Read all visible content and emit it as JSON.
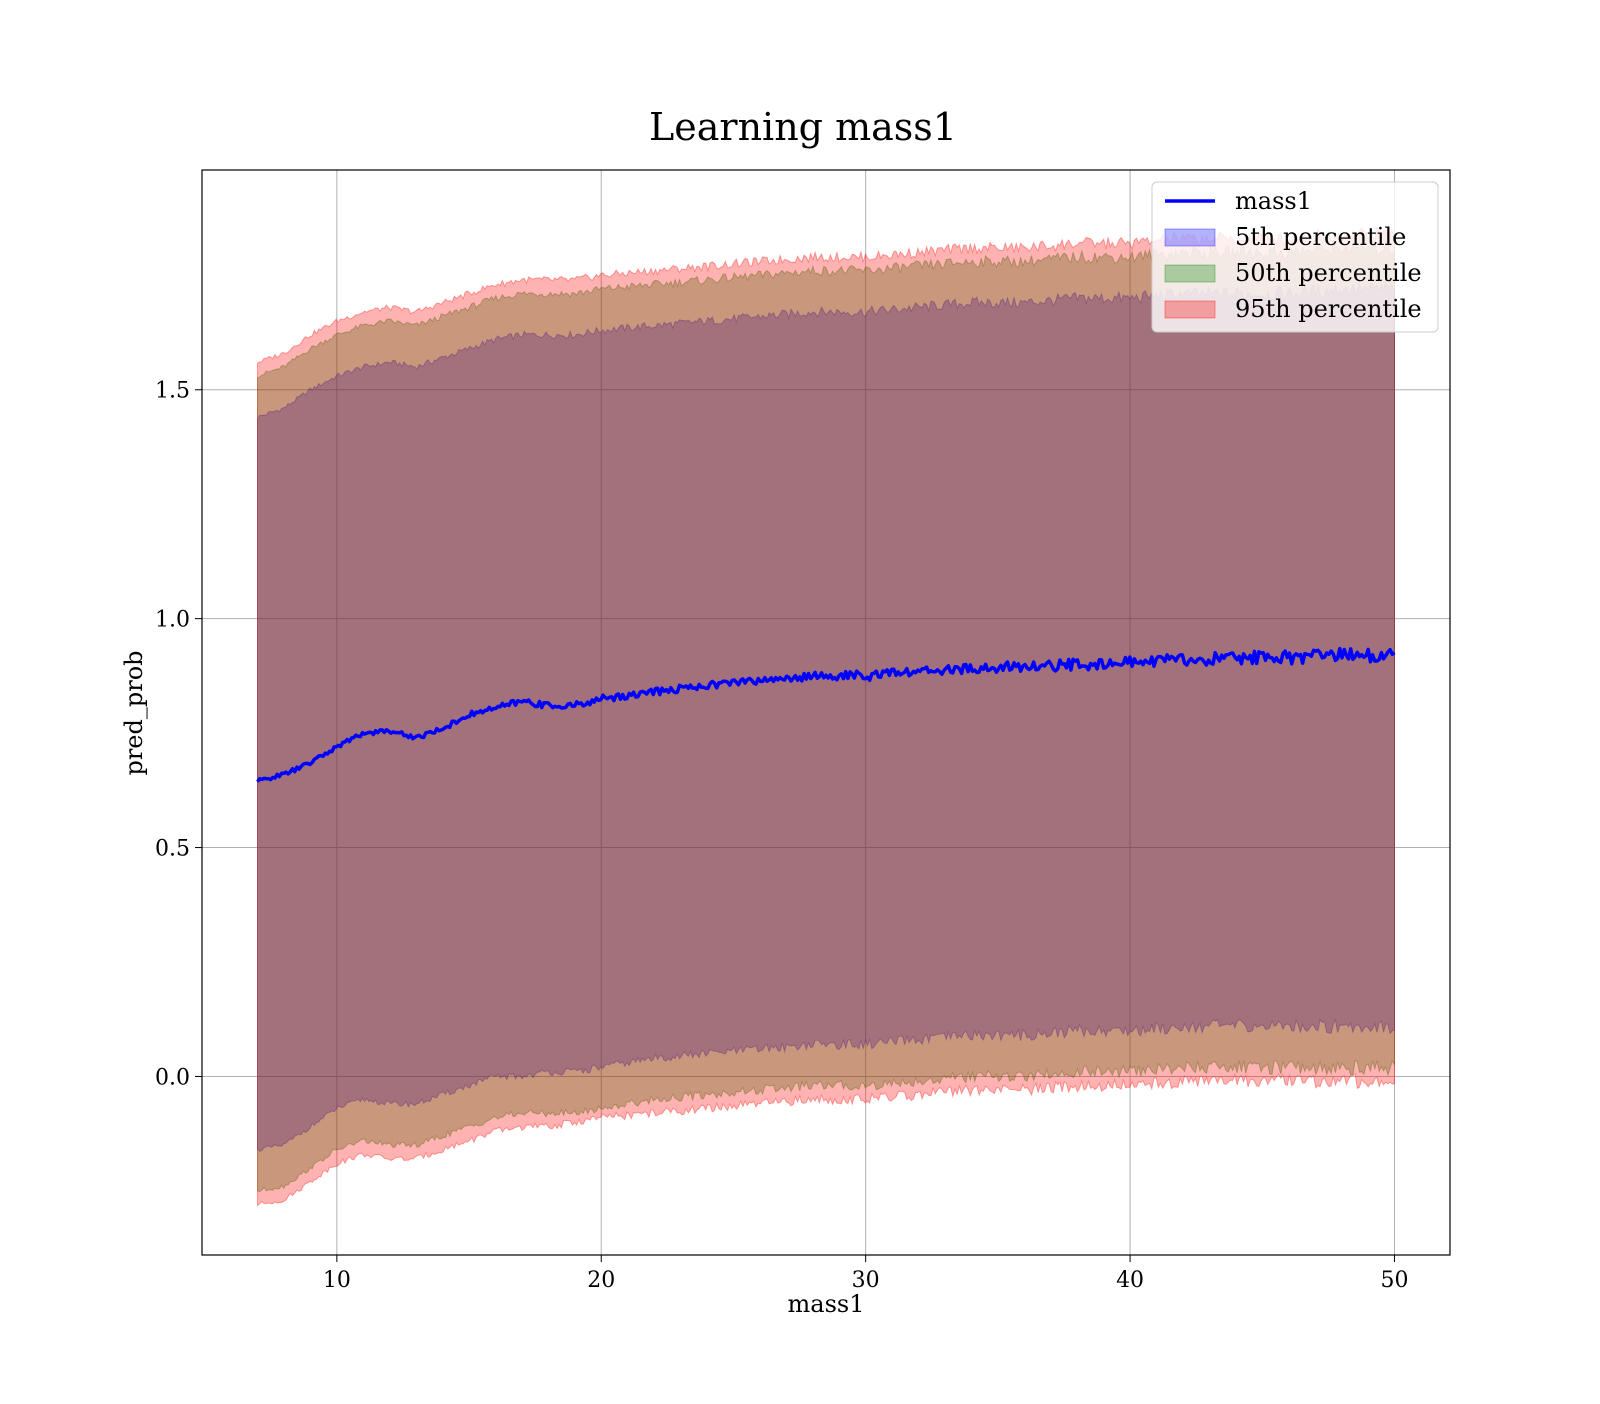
{
  "chart_data": {
    "type": "area",
    "title": "Learning mass1",
    "xlabel": "mass1",
    "ylabel": "pred_prob",
    "xlim": [
      4.9,
      52.1
    ],
    "ylim": [
      -0.39,
      1.98
    ],
    "xticks": [
      10,
      20,
      30,
      40,
      50
    ],
    "yticks": [
      0.0,
      0.5,
      1.0,
      1.5
    ],
    "xtick_labels": [
      "10",
      "20",
      "30",
      "40",
      "50"
    ],
    "ytick_labels": [
      "0.0",
      "0.5",
      "1.0",
      "1.5"
    ],
    "grid": true,
    "legend_position": "top-right",
    "x": [
      7,
      8,
      9,
      10,
      11,
      12,
      13,
      14,
      15,
      16,
      17,
      18,
      19,
      20,
      22,
      24,
      26,
      28,
      30,
      32,
      34,
      36,
      38,
      40,
      42,
      44,
      46,
      48,
      50
    ],
    "series": [
      {
        "name": "mass1",
        "kind": "line",
        "color": "#0000ff",
        "values": [
          0.645,
          0.66,
          0.685,
          0.72,
          0.75,
          0.755,
          0.74,
          0.76,
          0.79,
          0.805,
          0.82,
          0.81,
          0.81,
          0.825,
          0.84,
          0.855,
          0.865,
          0.875,
          0.875,
          0.885,
          0.89,
          0.895,
          0.9,
          0.905,
          0.91,
          0.915,
          0.915,
          0.92,
          0.92
        ]
      },
      {
        "name": "5th percentile",
        "kind": "band",
        "color": "#0000ff",
        "lower": [
          -0.16,
          -0.15,
          -0.11,
          -0.07,
          -0.05,
          -0.06,
          -0.06,
          -0.04,
          -0.02,
          0.0,
          0.0,
          0.01,
          0.01,
          0.02,
          0.04,
          0.05,
          0.06,
          0.07,
          0.07,
          0.08,
          0.09,
          0.09,
          0.1,
          0.1,
          0.11,
          0.11,
          0.11,
          0.11,
          0.11
        ],
        "upper": [
          1.44,
          1.46,
          1.5,
          1.53,
          1.55,
          1.56,
          1.55,
          1.57,
          1.59,
          1.61,
          1.62,
          1.62,
          1.62,
          1.63,
          1.64,
          1.65,
          1.66,
          1.67,
          1.67,
          1.68,
          1.69,
          1.69,
          1.7,
          1.7,
          1.71,
          1.71,
          1.71,
          1.72,
          1.72
        ]
      },
      {
        "name": "50th percentile",
        "kind": "band",
        "color": "#008000",
        "lower": [
          -0.25,
          -0.24,
          -0.2,
          -0.16,
          -0.14,
          -0.15,
          -0.15,
          -0.13,
          -0.11,
          -0.09,
          -0.08,
          -0.08,
          -0.08,
          -0.07,
          -0.05,
          -0.04,
          -0.03,
          -0.02,
          -0.02,
          -0.01,
          0.0,
          0.0,
          0.01,
          0.01,
          0.02,
          0.02,
          0.02,
          0.02,
          0.02
        ],
        "upper": [
          1.53,
          1.55,
          1.59,
          1.62,
          1.64,
          1.65,
          1.64,
          1.66,
          1.68,
          1.7,
          1.71,
          1.71,
          1.71,
          1.72,
          1.73,
          1.74,
          1.75,
          1.76,
          1.76,
          1.77,
          1.78,
          1.78,
          1.79,
          1.79,
          1.8,
          1.8,
          1.8,
          1.81,
          1.81
        ]
      },
      {
        "name": "95th percentile",
        "kind": "band",
        "color": "#ff0000",
        "lower": [
          -0.28,
          -0.27,
          -0.23,
          -0.19,
          -0.17,
          -0.18,
          -0.18,
          -0.16,
          -0.14,
          -0.12,
          -0.11,
          -0.11,
          -0.1,
          -0.09,
          -0.08,
          -0.07,
          -0.06,
          -0.05,
          -0.05,
          -0.04,
          -0.03,
          -0.03,
          -0.02,
          -0.02,
          -0.01,
          -0.01,
          -0.01,
          -0.01,
          -0.01
        ],
        "upper": [
          1.56,
          1.58,
          1.62,
          1.65,
          1.67,
          1.68,
          1.67,
          1.69,
          1.71,
          1.73,
          1.74,
          1.74,
          1.74,
          1.75,
          1.76,
          1.77,
          1.78,
          1.79,
          1.79,
          1.8,
          1.81,
          1.81,
          1.82,
          1.82,
          1.83,
          1.83,
          1.83,
          1.84,
          1.84
        ]
      }
    ]
  }
}
